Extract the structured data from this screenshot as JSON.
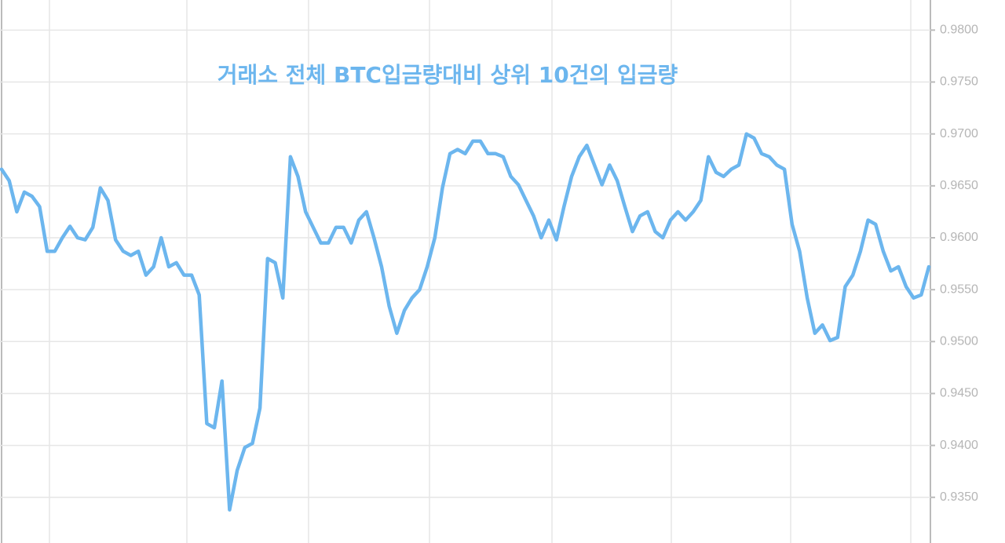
{
  "chart_data": {
    "type": "line",
    "title": "거래소 전체 BTC입금량대비 상위 10건의 입금량",
    "values": [
      0.9666,
      0.9655,
      0.9625,
      0.9644,
      0.964,
      0.963,
      0.9587,
      0.9587,
      0.96,
      0.9611,
      0.96,
      0.9598,
      0.961,
      0.9648,
      0.9636,
      0.9598,
      0.9587,
      0.9583,
      0.9587,
      0.9564,
      0.9572,
      0.96,
      0.9572,
      0.9576,
      0.9564,
      0.9564,
      0.9545,
      0.9421,
      0.9417,
      0.9462,
      0.9338,
      0.9376,
      0.9398,
      0.9402,
      0.9436,
      0.958,
      0.9576,
      0.9542,
      0.9678,
      0.9659,
      0.9625,
      0.961,
      0.9595,
      0.9595,
      0.961,
      0.961,
      0.9595,
      0.9617,
      0.9625,
      0.96,
      0.9572,
      0.9534,
      0.9508,
      0.953,
      0.9542,
      0.955,
      0.9572,
      0.96,
      0.9648,
      0.9681,
      0.9685,
      0.9681,
      0.9693,
      0.9693,
      0.9681,
      0.9681,
      0.9678,
      0.9659,
      0.9651,
      0.9636,
      0.9621,
      0.96,
      0.9617,
      0.9598,
      0.963,
      0.9659,
      0.9678,
      0.9689,
      0.967,
      0.9651,
      0.967,
      0.9655,
      0.963,
      0.9606,
      0.9621,
      0.9625,
      0.9606,
      0.96,
      0.9617,
      0.9625,
      0.9617,
      0.9625,
      0.9636,
      0.9678,
      0.9663,
      0.9659,
      0.9666,
      0.967,
      0.97,
      0.9696,
      0.9681,
      0.9678,
      0.967,
      0.9666,
      0.9613,
      0.9587,
      0.9542,
      0.9508,
      0.9516,
      0.9501,
      0.9504,
      0.9553,
      0.9564,
      0.9587,
      0.9617,
      0.9613,
      0.9587,
      0.9568,
      0.9572,
      0.9553,
      0.9542,
      0.9545,
      0.9572
    ],
    "color": "#6cb6ee",
    "ylim": [
      0.9306,
      0.9829
    ],
    "yticks": [
      {
        "value": 0.935,
        "label": "0.9350"
      },
      {
        "value": 0.94,
        "label": "0.9400"
      },
      {
        "value": 0.945,
        "label": "0.9450"
      },
      {
        "value": 0.95,
        "label": "0.9500"
      },
      {
        "value": 0.955,
        "label": "0.9550"
      },
      {
        "value": 0.96,
        "label": "0.9600"
      },
      {
        "value": 0.965,
        "label": "0.9650"
      },
      {
        "value": 0.97,
        "label": "0.9700"
      },
      {
        "value": 0.975,
        "label": "0.9750"
      },
      {
        "value": 0.98,
        "label": "0.9800"
      }
    ],
    "grid": true
  }
}
